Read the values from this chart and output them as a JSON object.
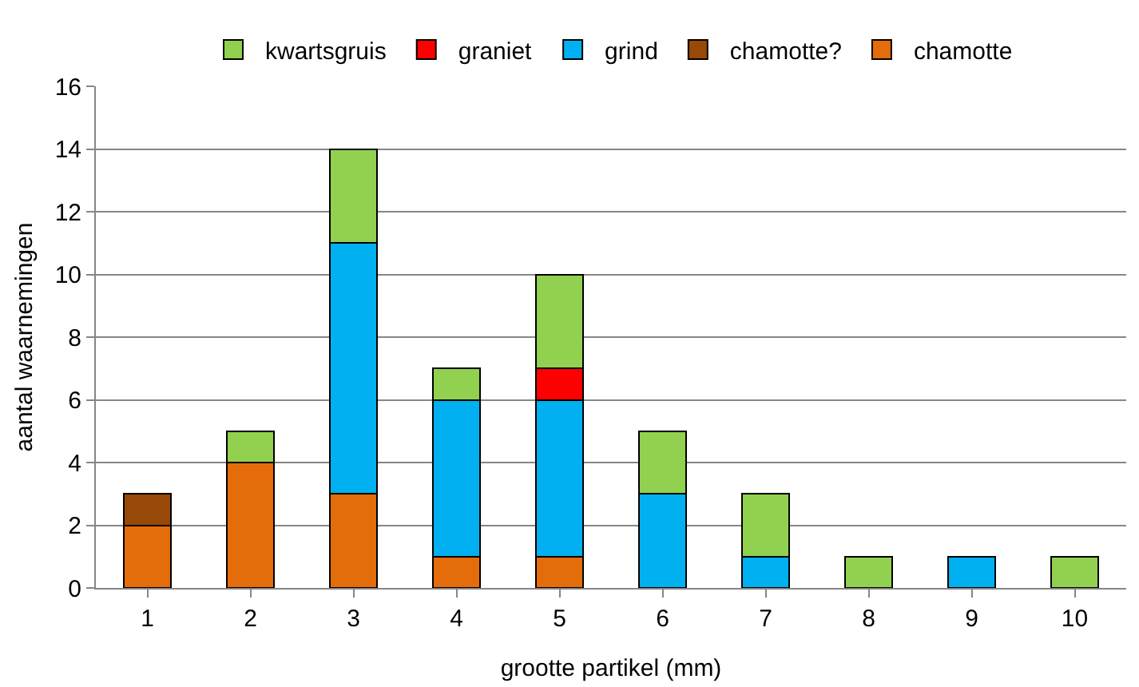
{
  "chart_data": {
    "type": "bar",
    "stacked": true,
    "xlabel": "grootte partikel (mm)",
    "ylabel": "aantal waarnemingen",
    "categories": [
      "1",
      "2",
      "3",
      "4",
      "5",
      "6",
      "7",
      "8",
      "9",
      "10"
    ],
    "series": [
      {
        "name": "chamotte",
        "color": "#e46c0a",
        "values": [
          2,
          4,
          3,
          1,
          1,
          null,
          null,
          null,
          null,
          null
        ]
      },
      {
        "name": "chamotte?",
        "color": "#984807",
        "values": [
          1,
          null,
          null,
          null,
          null,
          null,
          null,
          null,
          null,
          null
        ]
      },
      {
        "name": "grind",
        "color": "#00b0f0",
        "values": [
          null,
          null,
          8,
          5,
          5,
          3,
          1,
          null,
          1,
          null
        ]
      },
      {
        "name": "graniet",
        "color": "#ff0000",
        "values": [
          null,
          null,
          null,
          null,
          1,
          null,
          null,
          null,
          null,
          null
        ]
      },
      {
        "name": "kwartsgruis",
        "color": "#92d050",
        "values": [
          null,
          1,
          3,
          1,
          3,
          2,
          2,
          1,
          null,
          1
        ]
      }
    ],
    "ylim": [
      0,
      16
    ],
    "yticks": [
      0,
      2,
      4,
      6,
      8,
      10,
      12,
      14,
      16
    ],
    "grid": "y",
    "legend": "top"
  }
}
